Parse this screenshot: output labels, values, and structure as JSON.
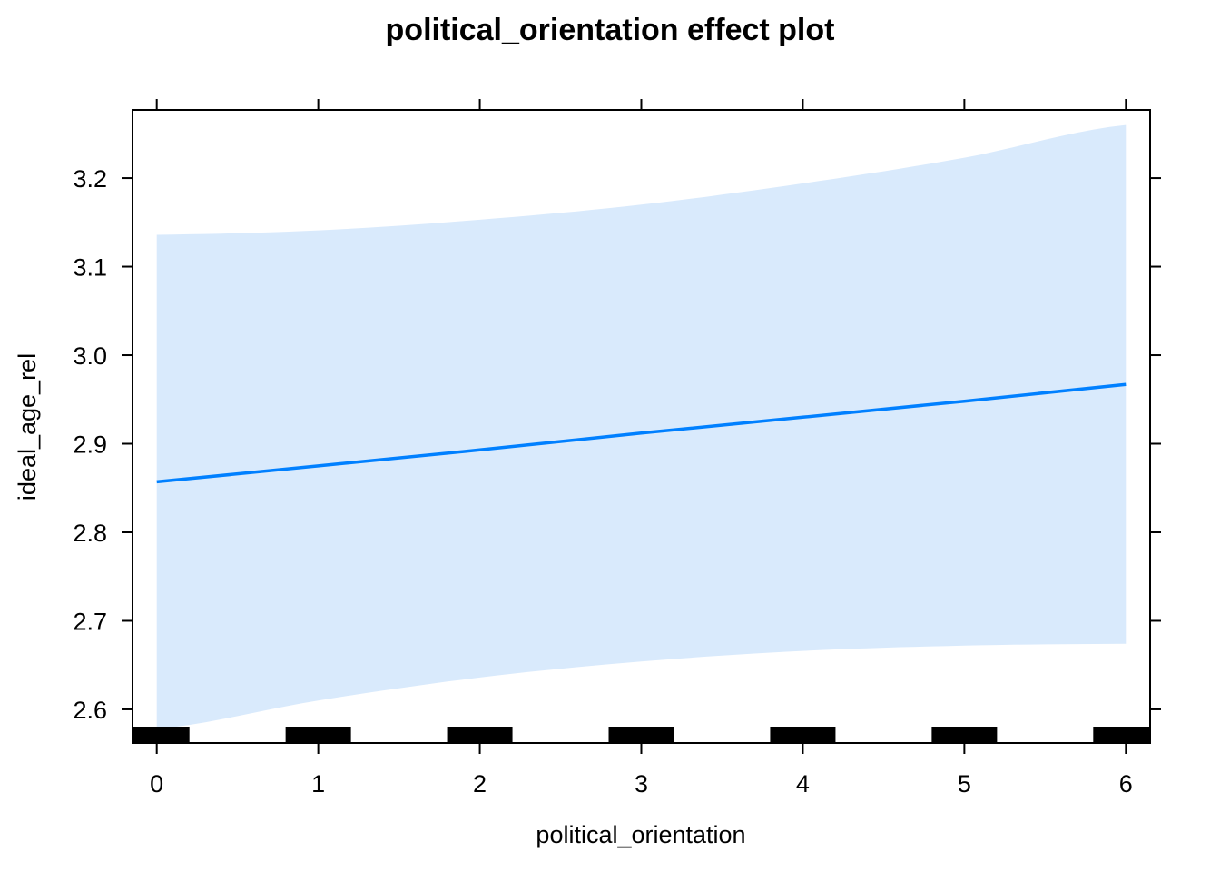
{
  "chart_data": {
    "type": "line",
    "title": "political_orientation effect plot",
    "xlabel": "political_orientation",
    "ylabel": "ideal_age_rel",
    "x_ticks": [
      0,
      1,
      2,
      3,
      4,
      5,
      6
    ],
    "y_ticks": [
      2.6,
      2.7,
      2.8,
      2.9,
      3.0,
      3.1,
      3.2
    ],
    "y_tick_labels": [
      "2.6",
      "2.7",
      "2.8",
      "2.9",
      "3.0",
      "3.1",
      "3.2"
    ],
    "xlim": [
      -0.15,
      6.15
    ],
    "ylim": [
      2.562,
      3.277
    ],
    "grid": false,
    "series": [
      {
        "x": [
          0,
          1,
          2,
          3,
          4,
          5,
          6
        ],
        "fit": [
          2.857,
          2.875,
          2.893,
          2.912,
          2.93,
          2.948,
          2.967
        ],
        "lower": [
          2.578,
          2.61,
          2.636,
          2.654,
          2.666,
          2.672,
          2.674
        ],
        "upper": [
          3.136,
          3.141,
          3.153,
          3.17,
          3.194,
          3.223,
          3.26
        ],
        "color": "#0080ff",
        "band_color": "#d9eafc"
      }
    ],
    "rug_positions": [
      0,
      1,
      2,
      3,
      4,
      5,
      6
    ]
  }
}
